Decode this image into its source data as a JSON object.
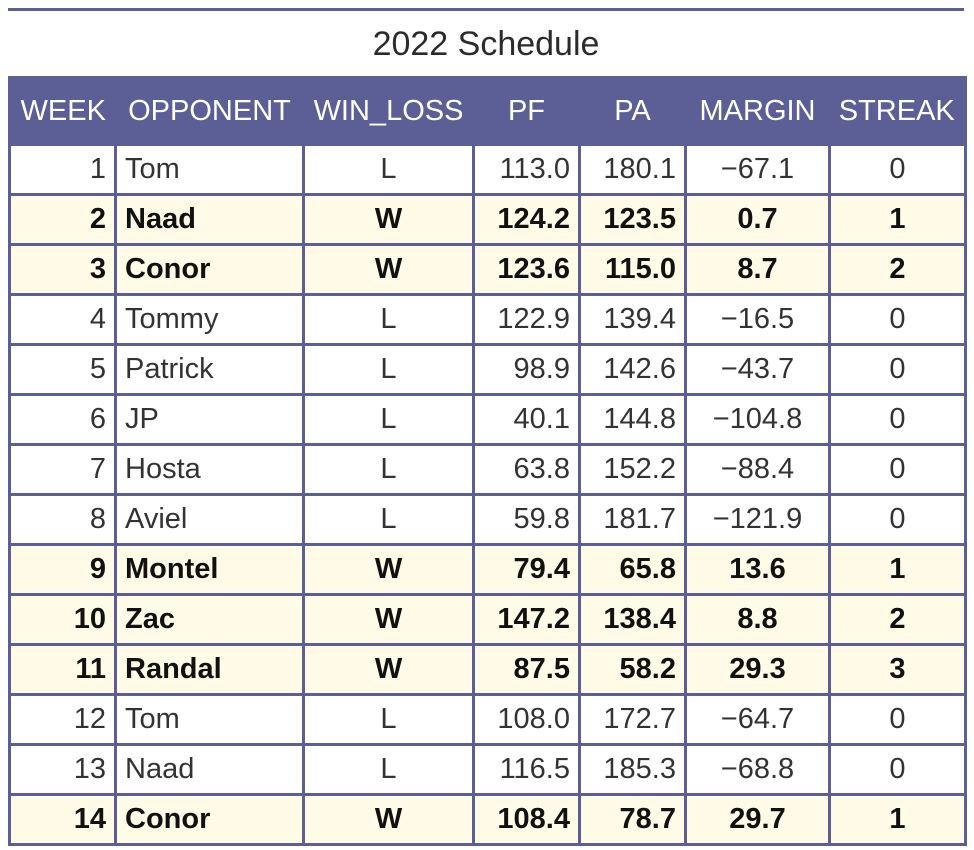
{
  "title": "2022 Schedule",
  "columns": [
    "WEEK",
    "OPPONENT",
    "WIN_LOSS",
    "PF",
    "PA",
    "MARGIN",
    "STREAK"
  ],
  "rows": [
    {
      "week": "1",
      "opponent": "Tom",
      "win_loss": "L",
      "pf": "113.0",
      "pa": "180.1",
      "margin": "−67.1",
      "streak": "0"
    },
    {
      "week": "2",
      "opponent": "Naad",
      "win_loss": "W",
      "pf": "124.2",
      "pa": "123.5",
      "margin": "0.7",
      "streak": "1"
    },
    {
      "week": "3",
      "opponent": "Conor",
      "win_loss": "W",
      "pf": "123.6",
      "pa": "115.0",
      "margin": "8.7",
      "streak": "2"
    },
    {
      "week": "4",
      "opponent": "Tommy",
      "win_loss": "L",
      "pf": "122.9",
      "pa": "139.4",
      "margin": "−16.5",
      "streak": "0"
    },
    {
      "week": "5",
      "opponent": "Patrick",
      "win_loss": "L",
      "pf": "98.9",
      "pa": "142.6",
      "margin": "−43.7",
      "streak": "0"
    },
    {
      "week": "6",
      "opponent": "JP",
      "win_loss": "L",
      "pf": "40.1",
      "pa": "144.8",
      "margin": "−104.8",
      "streak": "0"
    },
    {
      "week": "7",
      "opponent": "Hosta",
      "win_loss": "L",
      "pf": "63.8",
      "pa": "152.2",
      "margin": "−88.4",
      "streak": "0"
    },
    {
      "week": "8",
      "opponent": "Aviel",
      "win_loss": "L",
      "pf": "59.8",
      "pa": "181.7",
      "margin": "−121.9",
      "streak": "0"
    },
    {
      "week": "9",
      "opponent": "Montel",
      "win_loss": "W",
      "pf": "79.4",
      "pa": "65.8",
      "margin": "13.6",
      "streak": "1"
    },
    {
      "week": "10",
      "opponent": "Zac",
      "win_loss": "W",
      "pf": "147.2",
      "pa": "138.4",
      "margin": "8.8",
      "streak": "2"
    },
    {
      "week": "11",
      "opponent": "Randal",
      "win_loss": "W",
      "pf": "87.5",
      "pa": "58.2",
      "margin": "29.3",
      "streak": "3"
    },
    {
      "week": "12",
      "opponent": "Tom",
      "win_loss": "L",
      "pf": "108.0",
      "pa": "172.7",
      "margin": "−64.7",
      "streak": "0"
    },
    {
      "week": "13",
      "opponent": "Naad",
      "win_loss": "L",
      "pf": "116.5",
      "pa": "185.3",
      "margin": "−68.8",
      "streak": "0"
    },
    {
      "week": "14",
      "opponent": "Conor",
      "win_loss": "W",
      "pf": "108.4",
      "pa": "78.7",
      "margin": "29.7",
      "streak": "1"
    }
  ],
  "colors": {
    "header_bg": "#5c5f96",
    "header_text": "#ffffff",
    "win_row_bg": "#fffbe6",
    "loss_row_bg": "#ffffff"
  }
}
